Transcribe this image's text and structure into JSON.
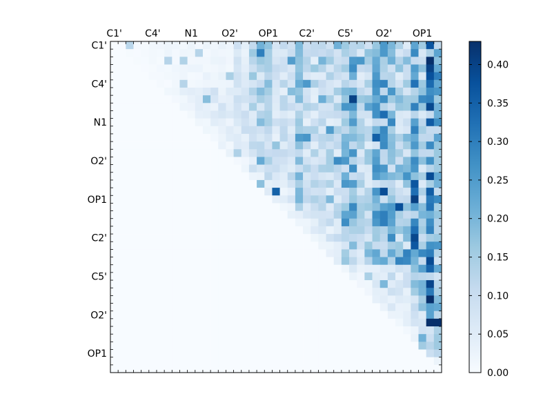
{
  "chart_data": {
    "type": "heatmap",
    "title": "",
    "xlabel": "",
    "ylabel": "",
    "colormap": "Blues",
    "color_low": "#f7fbff",
    "color_high": "#08306b",
    "rows": 43,
    "cols": 43,
    "x_tick_labels": [
      "C1'",
      "C4'",
      "N1",
      "O2'",
      "OP1",
      "C2'",
      "C5'",
      "O2'",
      "OP1"
    ],
    "y_tick_labels": [
      "C1'",
      "C4'",
      "N1",
      "O2'",
      "OP1",
      "C2'",
      "C5'",
      "O2'",
      "OP1"
    ],
    "colorbar": {
      "range": [
        0.0,
        0.43
      ],
      "tick_labels": [
        "0.00",
        "0.05",
        "0.10",
        "0.15",
        "0.20",
        "0.25",
        "0.30",
        "0.35",
        "0.40"
      ]
    },
    "lower_triangle": "near zero",
    "notable_cells": [
      {
        "row": 36,
        "col": 42,
        "value": 0.43
      },
      {
        "row": 36,
        "col": 41,
        "value": 0.43
      },
      {
        "row": 19,
        "col": 21,
        "value": 0.35
      },
      {
        "row": 21,
        "col": 37,
        "value": 0.38
      }
    ]
  }
}
